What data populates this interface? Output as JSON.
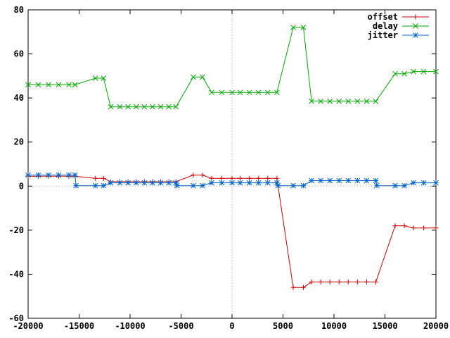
{
  "chart_data": {
    "type": "line",
    "title": "",
    "xlabel": "",
    "ylabel": "",
    "xlim": [
      -20000,
      20000
    ],
    "ylim": [
      -60,
      80
    ],
    "x_ticks": [
      -20000,
      -15000,
      -10000,
      -5000,
      0,
      5000,
      10000,
      15000,
      20000
    ],
    "x_tick_labels": [
      "-20000",
      "-15000",
      "-10000",
      "-5000",
      "0",
      "5000",
      "10000",
      "15000",
      "20000"
    ],
    "y_ticks": [
      -60,
      -40,
      -20,
      0,
      20,
      40,
      60,
      80
    ],
    "y_tick_labels": [
      "-60",
      "-40",
      "-20",
      "0",
      "20",
      "40",
      "60",
      "80"
    ],
    "zero_lines": true,
    "legend_position": "top-right",
    "series": [
      {
        "name": "offset",
        "color": "#cc0000",
        "marker": "plus",
        "points": [
          [
            -20000,
            4.5
          ],
          [
            -19000,
            4.5
          ],
          [
            -18000,
            4.5
          ],
          [
            -17000,
            4.5
          ],
          [
            -16000,
            4.5
          ],
          [
            -15400,
            4.5
          ],
          [
            -13400,
            3.5
          ],
          [
            -12600,
            3.5
          ],
          [
            -11900,
            2
          ],
          [
            -11000,
            2
          ],
          [
            -10200,
            2
          ],
          [
            -9400,
            2
          ],
          [
            -8600,
            2
          ],
          [
            -7800,
            2
          ],
          [
            -7000,
            2
          ],
          [
            -6200,
            2
          ],
          [
            -5500,
            2
          ],
          [
            -3800,
            5
          ],
          [
            -2900,
            5
          ],
          [
            -2000,
            3.5
          ],
          [
            -1000,
            3.5
          ],
          [
            0,
            3.5
          ],
          [
            800,
            3.5
          ],
          [
            1700,
            3.5
          ],
          [
            2600,
            3.5
          ],
          [
            3500,
            3.5
          ],
          [
            4400,
            3.5
          ],
          [
            6000,
            -46
          ],
          [
            7000,
            -46
          ],
          [
            7800,
            -43.5
          ],
          [
            8700,
            -43.5
          ],
          [
            9600,
            -43.5
          ],
          [
            10500,
            -43.5
          ],
          [
            11400,
            -43.5
          ],
          [
            12300,
            -43.5
          ],
          [
            13200,
            -43.5
          ],
          [
            14100,
            -43.5
          ],
          [
            16000,
            -18
          ],
          [
            16900,
            -18
          ],
          [
            17800,
            -19
          ],
          [
            18800,
            -19
          ],
          [
            20000,
            -19
          ]
        ]
      },
      {
        "name": "delay",
        "color": "#00aa00",
        "marker": "cross",
        "points": [
          [
            -20000,
            46
          ],
          [
            -19000,
            46
          ],
          [
            -18000,
            46
          ],
          [
            -17000,
            46
          ],
          [
            -16000,
            46
          ],
          [
            -15400,
            46
          ],
          [
            -13400,
            49
          ],
          [
            -12600,
            49
          ],
          [
            -11900,
            36
          ],
          [
            -11000,
            36
          ],
          [
            -10200,
            36
          ],
          [
            -9400,
            36
          ],
          [
            -8600,
            36
          ],
          [
            -7800,
            36
          ],
          [
            -7000,
            36
          ],
          [
            -6200,
            36
          ],
          [
            -5500,
            36
          ],
          [
            -3800,
            49.5
          ],
          [
            -2900,
            49.5
          ],
          [
            -2000,
            42.5
          ],
          [
            -1000,
            42.5
          ],
          [
            0,
            42.5
          ],
          [
            800,
            42.5
          ],
          [
            1700,
            42.5
          ],
          [
            2600,
            42.5
          ],
          [
            3500,
            42.5
          ],
          [
            4400,
            42.5
          ],
          [
            6000,
            72
          ],
          [
            7000,
            72
          ],
          [
            7800,
            38.5
          ],
          [
            8700,
            38.5
          ],
          [
            9600,
            38.5
          ],
          [
            10500,
            38.5
          ],
          [
            11400,
            38.5
          ],
          [
            12300,
            38.5
          ],
          [
            13200,
            38.5
          ],
          [
            14100,
            38.5
          ],
          [
            16000,
            51
          ],
          [
            16900,
            51
          ],
          [
            17800,
            52
          ],
          [
            18800,
            52
          ],
          [
            20000,
            52
          ]
        ]
      },
      {
        "name": "jitter",
        "color": "#0066cc",
        "marker": "star",
        "points": [
          [
            -20000,
            5
          ],
          [
            -19000,
            5
          ],
          [
            -18000,
            5
          ],
          [
            -17000,
            5
          ],
          [
            -16000,
            5
          ],
          [
            -15400,
            5
          ],
          [
            -15300,
            0.2
          ],
          [
            -13400,
            0.2
          ],
          [
            -12600,
            0.2
          ],
          [
            -11900,
            1.5
          ],
          [
            -11000,
            1.5
          ],
          [
            -10200,
            1.5
          ],
          [
            -9400,
            1.5
          ],
          [
            -8600,
            1.5
          ],
          [
            -7800,
            1.5
          ],
          [
            -7000,
            1.5
          ],
          [
            -6200,
            1.5
          ],
          [
            -5500,
            1.5
          ],
          [
            -5400,
            0.2
          ],
          [
            -3800,
            0.2
          ],
          [
            -2900,
            0.2
          ],
          [
            -2000,
            1.5
          ],
          [
            -1000,
            1.5
          ],
          [
            0,
            1.5
          ],
          [
            800,
            1.5
          ],
          [
            1700,
            1.5
          ],
          [
            2600,
            1.5
          ],
          [
            3500,
            1.5
          ],
          [
            4400,
            1.5
          ],
          [
            4500,
            0.2
          ],
          [
            6000,
            0.2
          ],
          [
            7000,
            0.2
          ],
          [
            7800,
            2.5
          ],
          [
            8700,
            2.5
          ],
          [
            9600,
            2.5
          ],
          [
            10500,
            2.5
          ],
          [
            11400,
            2.5
          ],
          [
            12300,
            2.5
          ],
          [
            13200,
            2.5
          ],
          [
            14100,
            2.5
          ],
          [
            14200,
            0.2
          ],
          [
            16000,
            0.2
          ],
          [
            16900,
            0.2
          ],
          [
            17800,
            1.5
          ],
          [
            18800,
            1.5
          ],
          [
            20000,
            1.5
          ]
        ]
      }
    ]
  }
}
